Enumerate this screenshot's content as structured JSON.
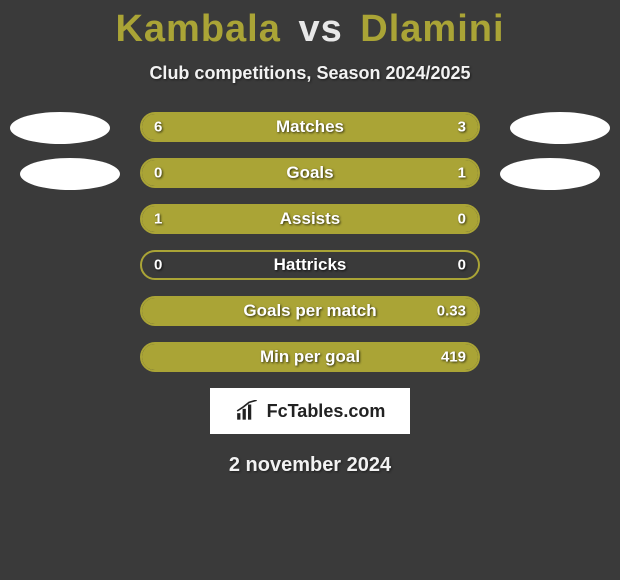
{
  "header": {
    "player1": "Kambala",
    "vs": "vs",
    "player2": "Dlamini",
    "subtitle": "Club competitions, Season 2024/2025"
  },
  "colors": {
    "background": "#3a3a3a",
    "accent": "#aaa436",
    "text": "#f2f2f2",
    "barText": "#ffffff",
    "badgeBg": "#ffffff",
    "badgeText": "#222222"
  },
  "chart": {
    "barTrackWidth": 340,
    "barHeight": 30,
    "barRadius": 15,
    "borderWidth": 2,
    "rows": [
      {
        "label": "Matches",
        "left": "6",
        "right": "3",
        "leftPct": 66.7,
        "rightPct": 33.3
      },
      {
        "label": "Goals",
        "left": "0",
        "right": "1",
        "leftPct": 18,
        "rightPct": 82
      },
      {
        "label": "Assists",
        "left": "1",
        "right": "0",
        "leftPct": 78,
        "rightPct": 22
      },
      {
        "label": "Hattricks",
        "left": "0",
        "right": "0",
        "leftPct": 0,
        "rightPct": 0
      },
      {
        "label": "Goals per match",
        "left": "",
        "right": "0.33",
        "leftPct": 10,
        "rightPct": 90
      },
      {
        "label": "Min per goal",
        "left": "",
        "right": "419",
        "leftPct": 10,
        "rightPct": 90
      }
    ]
  },
  "brand": {
    "text": "FcTables.com"
  },
  "footer": {
    "date": "2 november 2024"
  }
}
